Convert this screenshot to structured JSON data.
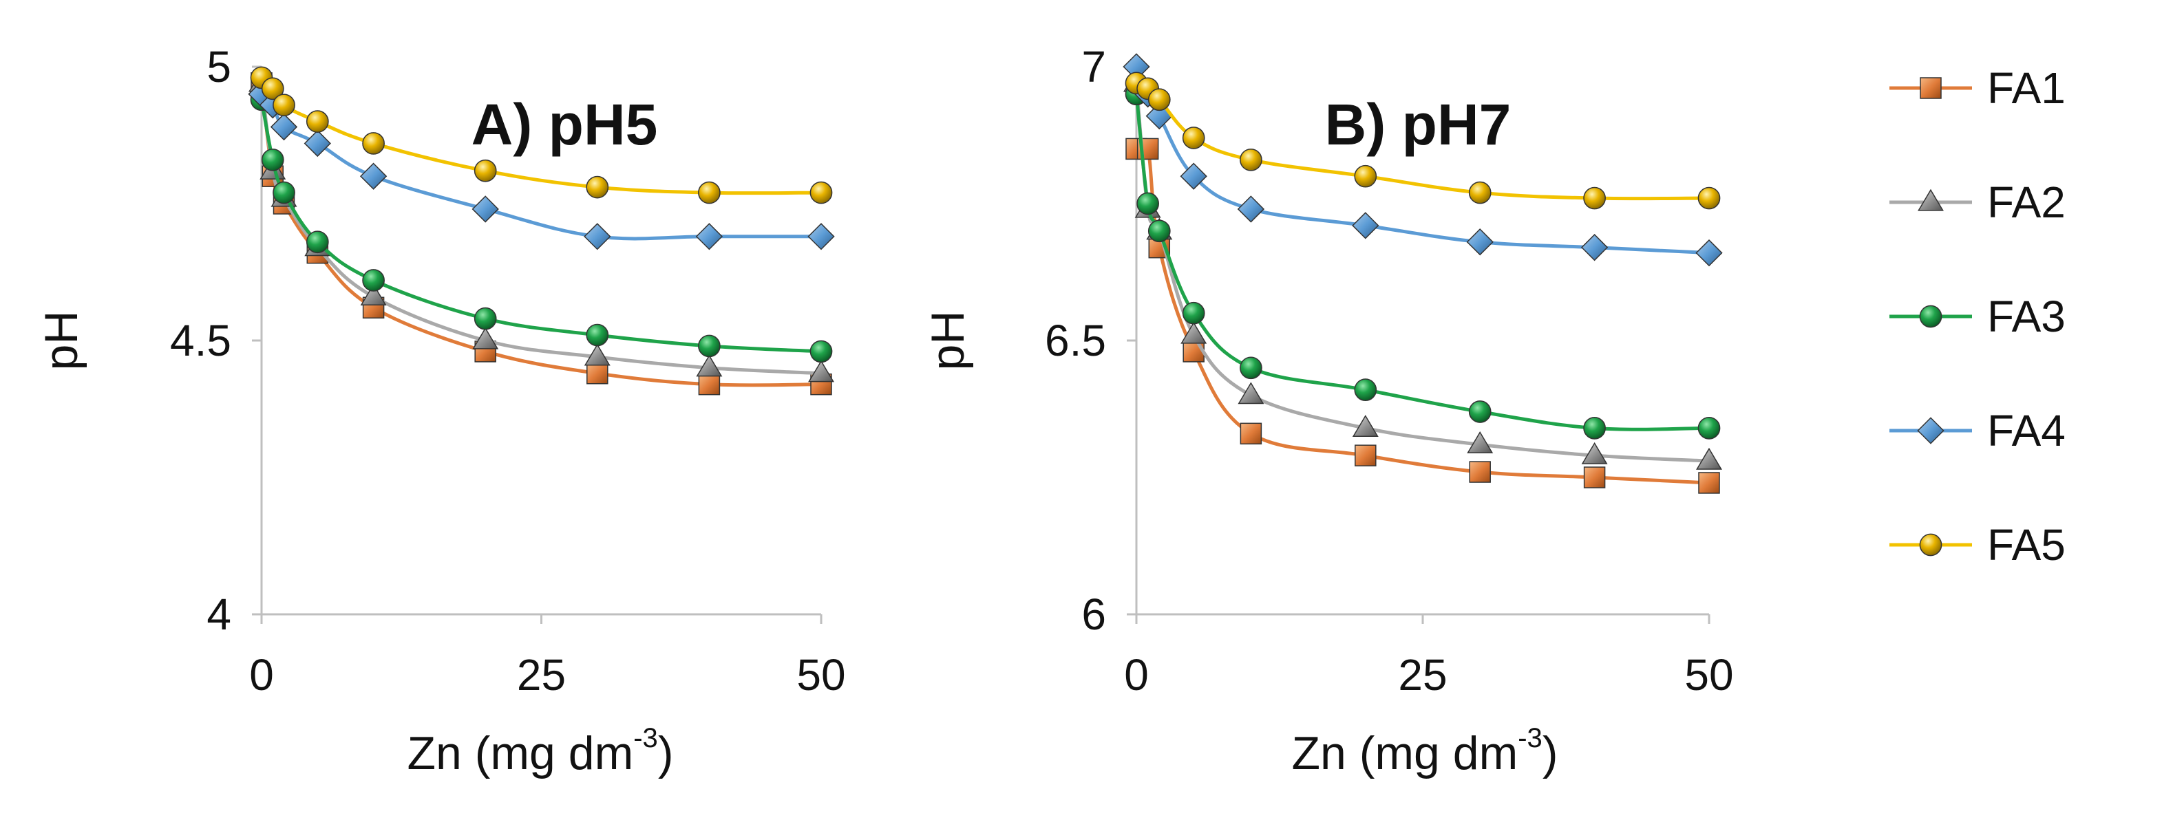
{
  "chart_data": [
    {
      "type": "line",
      "title": "A) pH5",
      "xlabel": "Zn (mg dm",
      "xlabel_sup": "-3",
      "xlabel_close": ")",
      "ylabel": "pH",
      "xlim": [
        0,
        50
      ],
      "ylim": [
        4,
        5
      ],
      "xticks": [
        0,
        25,
        50
      ],
      "yticks": [
        4,
        4.5,
        5
      ],
      "ytick_labels": [
        "4",
        "4.5",
        "5"
      ],
      "x": [
        0,
        1,
        2,
        5,
        10,
        20,
        30,
        40,
        50
      ],
      "series": [
        {
          "name": "FA1",
          "values": [
            4.97,
            4.8,
            4.75,
            4.66,
            4.56,
            4.48,
            4.44,
            4.42,
            4.42
          ]
        },
        {
          "name": "FA2",
          "values": [
            4.97,
            4.81,
            4.76,
            4.67,
            4.58,
            4.5,
            4.47,
            4.45,
            4.44
          ]
        },
        {
          "name": "FA3",
          "values": [
            4.94,
            4.83,
            4.77,
            4.68,
            4.61,
            4.54,
            4.51,
            4.49,
            4.48
          ]
        },
        {
          "name": "FA4",
          "values": [
            4.95,
            4.93,
            4.89,
            4.86,
            4.8,
            4.74,
            4.69,
            4.69,
            4.69
          ]
        },
        {
          "name": "FA5",
          "values": [
            4.98,
            4.96,
            4.93,
            4.9,
            4.86,
            4.81,
            4.78,
            4.77,
            4.77
          ]
        }
      ]
    },
    {
      "type": "line",
      "title": "B) pH7",
      "xlabel": "Zn (mg dm",
      "xlabel_sup": "-3",
      "xlabel_close": ")",
      "ylabel": "pH",
      "xlim": [
        0,
        50
      ],
      "ylim": [
        6,
        7
      ],
      "xticks": [
        0,
        25,
        50
      ],
      "yticks": [
        6,
        6.5,
        7
      ],
      "ytick_labels": [
        "6",
        "6.5",
        "7"
      ],
      "x": [
        0,
        1,
        2,
        5,
        10,
        20,
        30,
        40,
        50
      ],
      "series": [
        {
          "name": "FA1",
          "values": [
            6.85,
            6.85,
            6.67,
            6.48,
            6.33,
            6.29,
            6.26,
            6.25,
            6.24
          ]
        },
        {
          "name": "FA2",
          "values": [
            6.97,
            6.74,
            6.7,
            6.51,
            6.4,
            6.34,
            6.31,
            6.29,
            6.28
          ]
        },
        {
          "name": "FA3",
          "values": [
            6.95,
            6.75,
            6.7,
            6.55,
            6.45,
            6.41,
            6.37,
            6.34,
            6.34
          ]
        },
        {
          "name": "FA4",
          "values": [
            7.0,
            6.95,
            6.91,
            6.8,
            6.74,
            6.71,
            6.68,
            6.67,
            6.66
          ]
        },
        {
          "name": "FA5",
          "values": [
            6.97,
            6.96,
            6.94,
            6.87,
            6.83,
            6.8,
            6.77,
            6.76,
            6.76
          ]
        }
      ]
    }
  ],
  "legend": {
    "position": "right",
    "items": [
      {
        "name": "FA1",
        "color": "#E07B39",
        "marker": "square"
      },
      {
        "name": "FA2",
        "color": "#A9A9A9",
        "marker": "triangle"
      },
      {
        "name": "FA3",
        "color": "#1FA34A",
        "marker": "circle"
      },
      {
        "name": "FA4",
        "color": "#5B9BD5",
        "marker": "diamond"
      },
      {
        "name": "FA5",
        "color": "#F2C200",
        "marker": "sphere"
      }
    ]
  },
  "colors": {
    "FA1": "#E07B39",
    "FA2": "#A9A9A9",
    "FA3": "#1FA34A",
    "FA4": "#5B9BD5",
    "FA5": "#F2C200",
    "axis": "#BFBFBF"
  }
}
